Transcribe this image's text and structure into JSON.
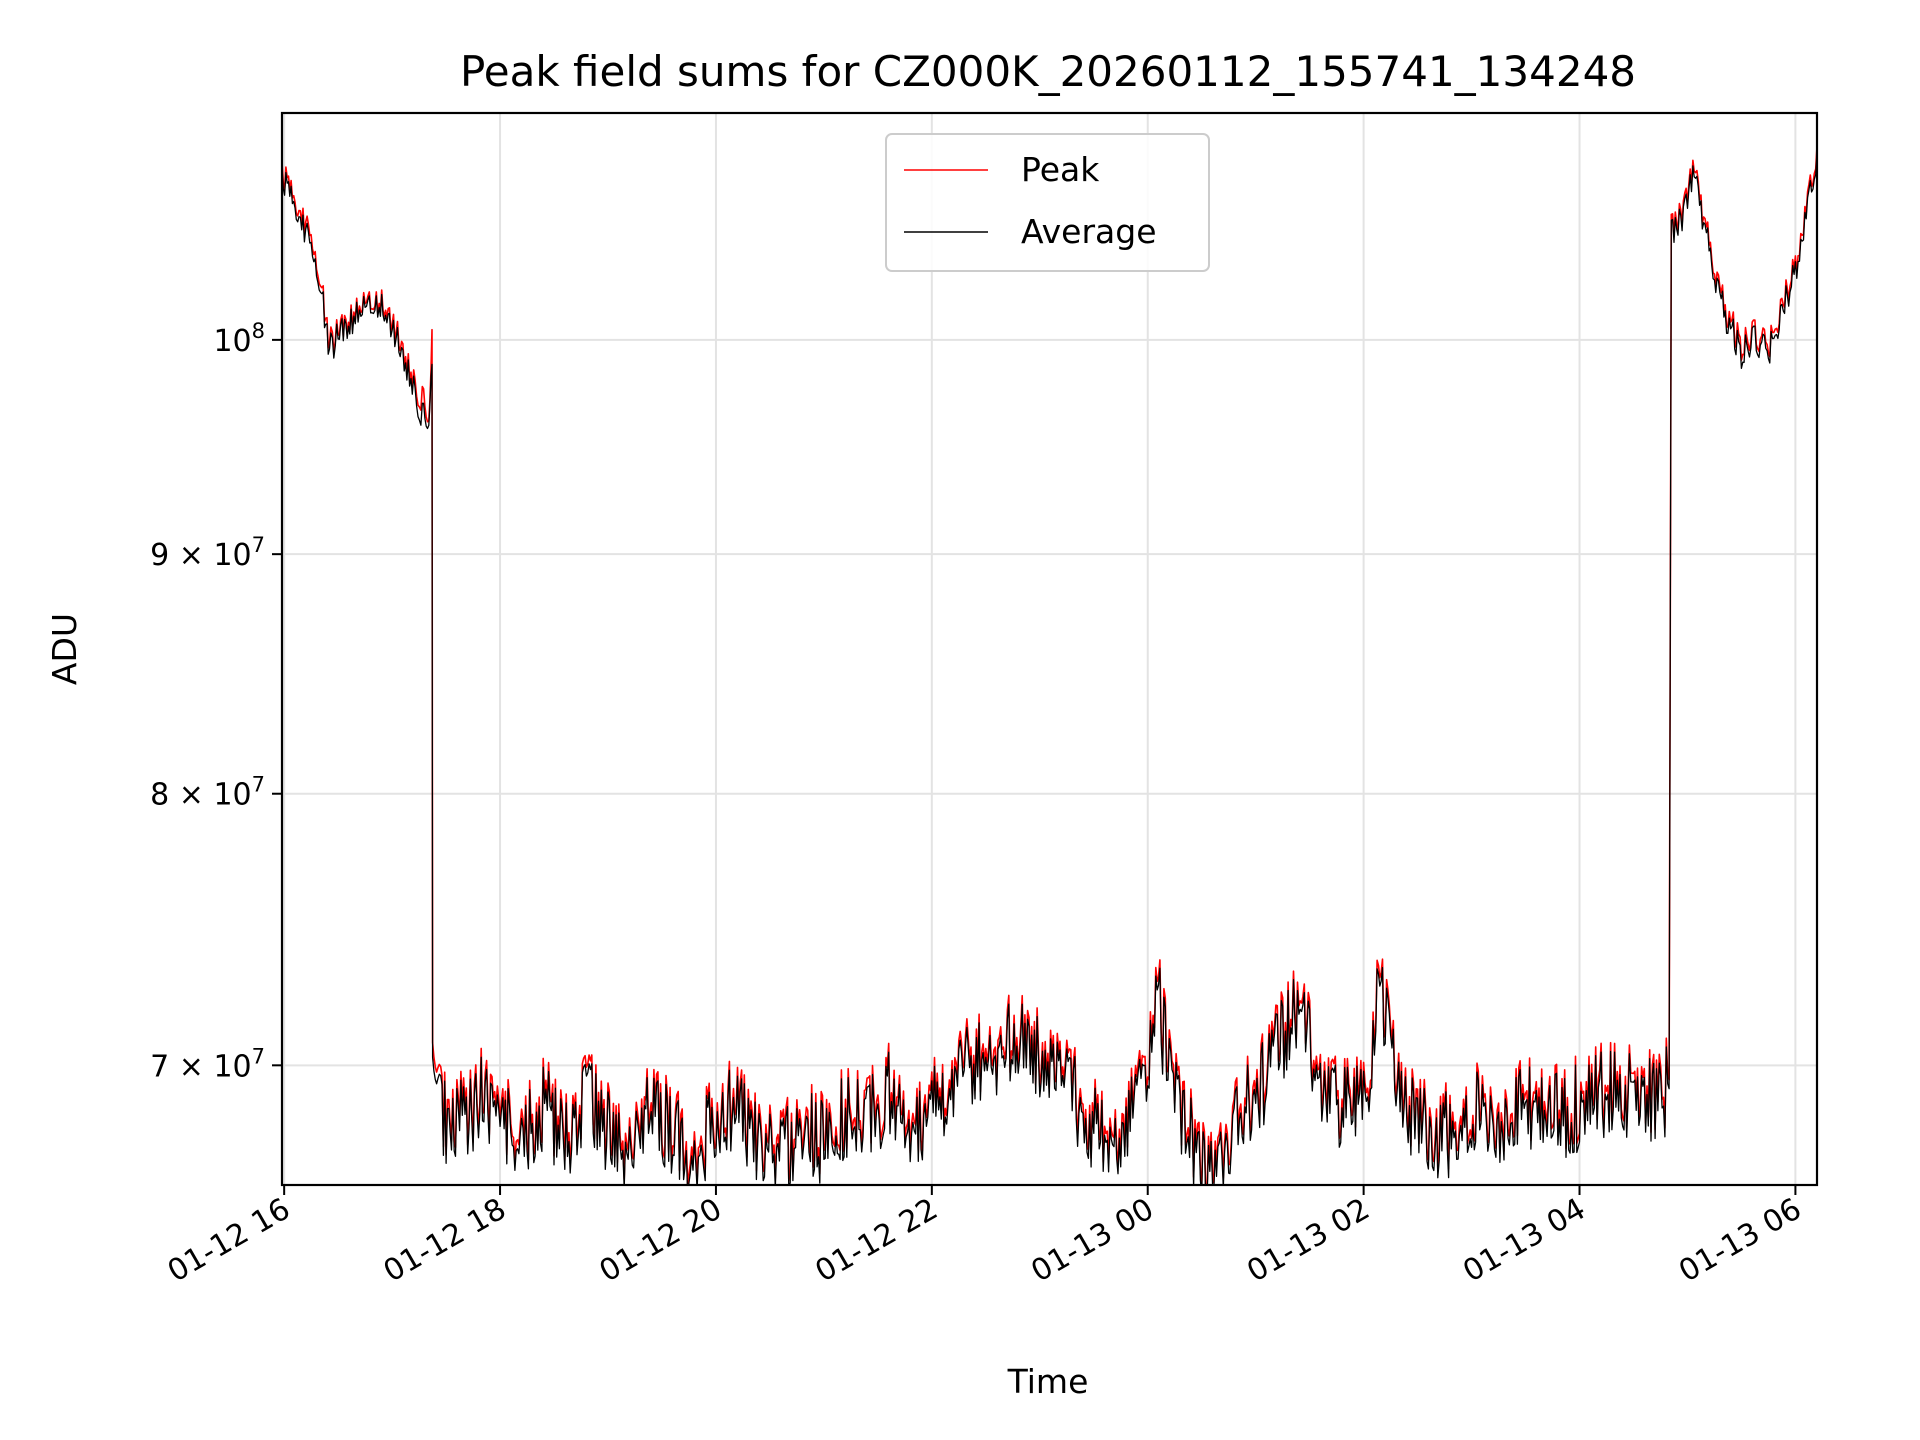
{
  "chart_data": {
    "type": "line",
    "title": "Peak field sums for CZ000K_20260112_155741_134248",
    "xlabel": "Time",
    "ylabel": "ADU",
    "x_unit": "hours since 2026-01-12 00:00",
    "xlim": [
      15.98,
      30.2
    ],
    "ylim": [
      66000000,
      111800000
    ],
    "y_scale": "log",
    "grid": true,
    "legend_position": "top-center",
    "x_ticks": [
      {
        "value": 16,
        "label": "01-12 16"
      },
      {
        "value": 18,
        "label": "01-12 18"
      },
      {
        "value": 20,
        "label": "01-12 20"
      },
      {
        "value": 22,
        "label": "01-12 22"
      },
      {
        "value": 24,
        "label": "01-13 00"
      },
      {
        "value": 26,
        "label": "01-13 02"
      },
      {
        "value": 28,
        "label": "01-13 04"
      },
      {
        "value": 30,
        "label": "01-13 06"
      }
    ],
    "y_ticks": [
      {
        "value": 100000000,
        "mantissa": "",
        "base": "10",
        "exp": "8"
      },
      {
        "value": 90000000,
        "mantissa": "9",
        "base": "10",
        "exp": "7"
      },
      {
        "value": 80000000,
        "mantissa": "8",
        "base": "10",
        "exp": "7"
      },
      {
        "value": 70000000,
        "mantissa": "7",
        "base": "10",
        "exp": "7"
      }
    ],
    "series": [
      {
        "name": "Peak",
        "color": "#ff0000",
        "points": [
          [
            15.98,
            108800000
          ],
          [
            16.1,
            107000000
          ],
          [
            16.25,
            105200000
          ],
          [
            16.35,
            102500000
          ],
          [
            16.42,
            99700000
          ],
          [
            16.5,
            100600000
          ],
          [
            16.62,
            101200000
          ],
          [
            16.75,
            101700000
          ],
          [
            16.88,
            101900000
          ],
          [
            17.0,
            101000000
          ],
          [
            17.1,
            99400000
          ],
          [
            17.2,
            97900000
          ],
          [
            17.28,
            97000000
          ],
          [
            17.34,
            96600000
          ],
          [
            17.36,
            98000000
          ],
          [
            17.37,
            100500000
          ],
          [
            17.375,
            69600000
          ],
          [
            17.45,
            68800000
          ],
          [
            17.55,
            67900000
          ],
          [
            17.7,
            68600000
          ],
          [
            17.85,
            69200000
          ],
          [
            18.0,
            68400000
          ],
          [
            18.2,
            67500000
          ],
          [
            18.4,
            68900000
          ],
          [
            18.6,
            67800000
          ],
          [
            18.8,
            69100000
          ],
          [
            19.0,
            68100000
          ],
          [
            19.2,
            67400000
          ],
          [
            19.4,
            68800000
          ],
          [
            19.6,
            67900000
          ],
          [
            19.8,
            67300000
          ],
          [
            20.0,
            68200000
          ],
          [
            20.2,
            68900000
          ],
          [
            20.4,
            67600000
          ],
          [
            20.6,
            67200000
          ],
          [
            20.8,
            68100000
          ],
          [
            21.0,
            67700000
          ],
          [
            21.2,
            68600000
          ],
          [
            21.4,
            68300000
          ],
          [
            21.6,
            69300000
          ],
          [
            21.8,
            68000000
          ],
          [
            22.0,
            68800000
          ],
          [
            22.2,
            69900000
          ],
          [
            22.4,
            70500000
          ],
          [
            22.6,
            70800000
          ],
          [
            22.8,
            71000000
          ],
          [
            23.0,
            70700000
          ],
          [
            23.2,
            70600000
          ],
          [
            23.4,
            68400000
          ],
          [
            23.6,
            67800000
          ],
          [
            23.8,
            68200000
          ],
          [
            24.0,
            70200000
          ],
          [
            24.1,
            72500000
          ],
          [
            24.2,
            69800000
          ],
          [
            24.4,
            67700000
          ],
          [
            24.6,
            66800000
          ],
          [
            24.8,
            68300000
          ],
          [
            25.0,
            69200000
          ],
          [
            25.2,
            70800000
          ],
          [
            25.4,
            72700000
          ],
          [
            25.6,
            69500000
          ],
          [
            25.8,
            68700000
          ],
          [
            26.0,
            68900000
          ],
          [
            26.15,
            72900000
          ],
          [
            26.3,
            69500000
          ],
          [
            26.5,
            68200000
          ],
          [
            26.7,
            67800000
          ],
          [
            26.9,
            68300000
          ],
          [
            27.1,
            68700000
          ],
          [
            27.3,
            68500000
          ],
          [
            27.5,
            68900000
          ],
          [
            27.7,
            68400000
          ],
          [
            27.9,
            68700000
          ],
          [
            28.1,
            69100000
          ],
          [
            28.3,
            69500000
          ],
          [
            28.5,
            69300000
          ],
          [
            28.7,
            69100000
          ],
          [
            28.83,
            69500000
          ],
          [
            28.85,
            105700000
          ],
          [
            28.95,
            106300000
          ],
          [
            29.05,
            108900000
          ],
          [
            29.2,
            104800000
          ],
          [
            29.35,
            101500000
          ],
          [
            29.5,
            99800000
          ],
          [
            29.6,
            100400000
          ],
          [
            29.75,
            99700000
          ],
          [
            29.9,
            102000000
          ],
          [
            30.05,
            104800000
          ],
          [
            30.2,
            110000000
          ]
        ]
      },
      {
        "name": "Average",
        "color": "#000000",
        "points": [
          [
            15.98,
            108500000
          ],
          [
            16.1,
            106700000
          ],
          [
            16.25,
            104800000
          ],
          [
            16.35,
            102200000
          ],
          [
            16.42,
            99400000
          ],
          [
            16.5,
            100400000
          ],
          [
            16.62,
            101000000
          ],
          [
            16.75,
            101500000
          ],
          [
            16.88,
            101700000
          ],
          [
            17.0,
            100700000
          ],
          [
            17.1,
            99100000
          ],
          [
            17.2,
            97600000
          ],
          [
            17.28,
            96200000
          ],
          [
            17.34,
            96400000
          ],
          [
            17.36,
            97700000
          ],
          [
            17.37,
            98800000
          ],
          [
            17.375,
            69100000
          ],
          [
            17.45,
            68500000
          ],
          [
            17.55,
            67600000
          ],
          [
            17.7,
            68300000
          ],
          [
            17.85,
            68900000
          ],
          [
            18.0,
            68100000
          ],
          [
            18.2,
            67200000
          ],
          [
            18.4,
            68600000
          ],
          [
            18.6,
            67500000
          ],
          [
            18.8,
            68800000
          ],
          [
            19.0,
            67800000
          ],
          [
            19.2,
            67100000
          ],
          [
            19.4,
            68500000
          ],
          [
            19.6,
            67600000
          ],
          [
            19.8,
            67000000
          ],
          [
            20.0,
            67900000
          ],
          [
            20.2,
            68600000
          ],
          [
            20.4,
            67300000
          ],
          [
            20.6,
            66900000
          ],
          [
            20.8,
            67800000
          ],
          [
            21.0,
            67400000
          ],
          [
            21.2,
            68300000
          ],
          [
            21.4,
            68000000
          ],
          [
            21.6,
            69000000
          ],
          [
            21.8,
            67700000
          ],
          [
            22.0,
            68500000
          ],
          [
            22.2,
            69600000
          ],
          [
            22.4,
            70200000
          ],
          [
            22.6,
            70500000
          ],
          [
            22.8,
            70700000
          ],
          [
            23.0,
            70400000
          ],
          [
            23.2,
            70300000
          ],
          [
            23.4,
            68100000
          ],
          [
            23.6,
            67500000
          ],
          [
            23.8,
            67900000
          ],
          [
            24.0,
            69900000
          ],
          [
            24.1,
            72200000
          ],
          [
            24.2,
            69500000
          ],
          [
            24.4,
            67400000
          ],
          [
            24.6,
            66500000
          ],
          [
            24.8,
            68000000
          ],
          [
            25.0,
            68900000
          ],
          [
            25.2,
            70500000
          ],
          [
            25.4,
            72400000
          ],
          [
            25.6,
            69200000
          ],
          [
            25.8,
            68400000
          ],
          [
            26.0,
            68600000
          ],
          [
            26.15,
            72600000
          ],
          [
            26.3,
            69200000
          ],
          [
            26.5,
            67900000
          ],
          [
            26.7,
            67500000
          ],
          [
            26.9,
            68000000
          ],
          [
            27.1,
            68400000
          ],
          [
            27.3,
            68200000
          ],
          [
            27.5,
            68600000
          ],
          [
            27.7,
            68100000
          ],
          [
            27.9,
            68400000
          ],
          [
            28.1,
            68800000
          ],
          [
            28.3,
            69200000
          ],
          [
            28.5,
            69000000
          ],
          [
            28.7,
            68800000
          ],
          [
            28.83,
            69200000
          ],
          [
            28.85,
            105400000
          ],
          [
            28.95,
            106000000
          ],
          [
            29.05,
            108600000
          ],
          [
            29.2,
            104500000
          ],
          [
            29.35,
            101200000
          ],
          [
            29.5,
            99400000
          ],
          [
            29.6,
            100100000
          ],
          [
            29.75,
            99400000
          ],
          [
            29.9,
            101700000
          ],
          [
            30.05,
            104500000
          ],
          [
            30.2,
            109700000
          ]
        ]
      }
    ]
  }
}
